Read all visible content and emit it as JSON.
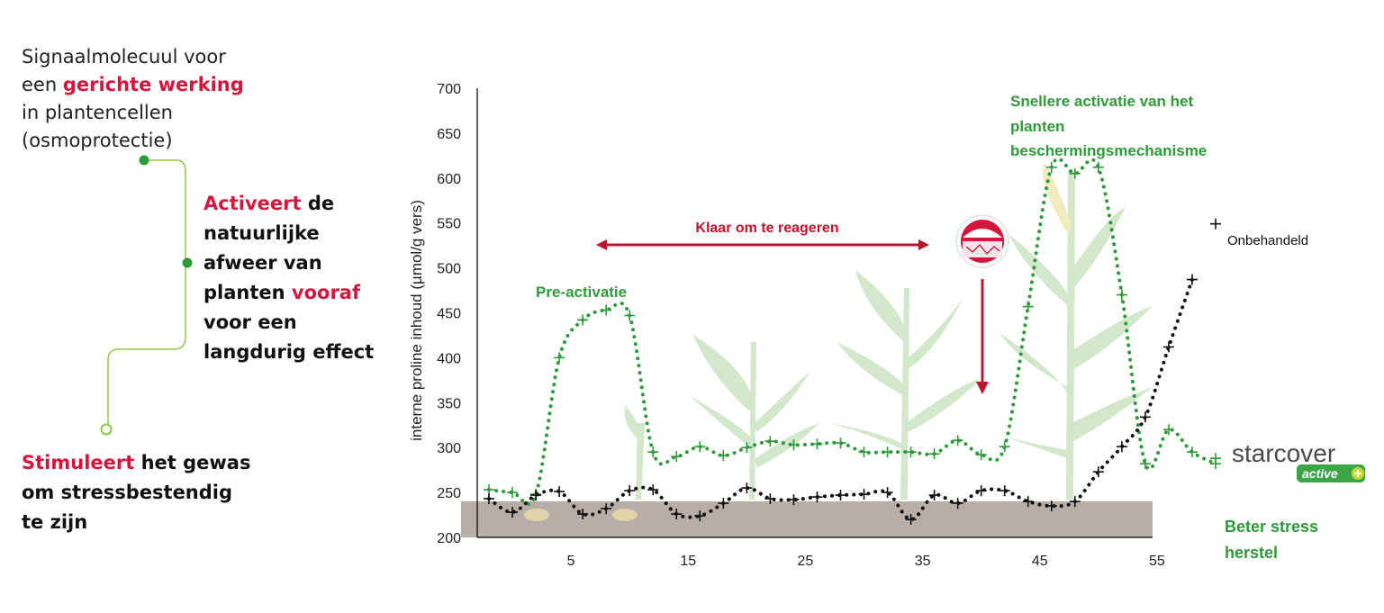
{
  "left_panel": {
    "block1": {
      "line1": "Signaalmolecuul voor",
      "line2_pre": "een ",
      "line2_red": "gerichte werking",
      "line3": "in plantencellen",
      "line4": "(osmoprotectie)"
    },
    "block2": {
      "line1_red": "Activeert",
      "line1_rest": " de",
      "line2": "natuurlijke",
      "line3": "afweer van",
      "line4_pre": "planten ",
      "line4_red": "vooraf",
      "line5": "voor een",
      "line6": "langdurig effect"
    },
    "block3": {
      "line1_red": "Stimuleert",
      "line1_rest": " het gewas",
      "line2": "om stressbestendig",
      "line3": "te zijn"
    }
  },
  "annotations": {
    "ready": "Klaar om te reageren",
    "pre_activation": "Pre-activatie",
    "faster_line1": "Snellere activatie van het",
    "faster_line2": "planten",
    "faster_line3": "beschermingsmechanisme",
    "untreated": "Onbehandeld",
    "better_line1": "Beter stress",
    "better_line2": "herstel"
  },
  "logo": {
    "name": "starcover",
    "sub": "active"
  },
  "colors": {
    "green": "#2e9b3a",
    "red": "#d4163c",
    "dark_red": "#b5172f",
    "black": "#111111",
    "soil": "#b7aea8"
  },
  "chart_data": {
    "type": "line",
    "ylabel": "interne proline inhoud (µmol/g vers)",
    "xlabel": "",
    "ylim": [
      200,
      700
    ],
    "yticks": [
      200,
      250,
      300,
      350,
      400,
      450,
      500,
      550,
      600,
      650,
      700
    ],
    "xlim": [
      -3,
      60
    ],
    "xticks": [
      5,
      15,
      25,
      35,
      45,
      55
    ],
    "series": [
      {
        "name": "",
        "color": "#2e9b3a",
        "x": [
          -2,
          0,
          2,
          4,
          6,
          8,
          10,
          12,
          14,
          16,
          18,
          20,
          22,
          24,
          26,
          28,
          30,
          32,
          34,
          36,
          38,
          40,
          42,
          44,
          46,
          48,
          50,
          52,
          54,
          56,
          58,
          60
        ],
        "y": [
          253,
          250,
          248,
          400,
          442,
          453,
          447,
          295,
          290,
          301,
          291,
          300,
          307,
          303,
          304,
          305,
          295,
          295,
          295,
          293,
          308,
          292,
          301,
          457,
          612,
          605,
          612,
          470,
          282,
          320,
          295,
          282
        ]
      },
      {
        "name": "Onbehandeld",
        "color": "#111111",
        "x": [
          -2,
          0,
          2,
          4,
          6,
          8,
          10,
          12,
          14,
          16,
          18,
          20,
          22,
          24,
          26,
          28,
          30,
          32,
          34,
          36,
          38,
          40,
          42,
          44,
          46,
          48,
          50,
          52,
          54,
          56,
          58
        ],
        "y": [
          243,
          228,
          247,
          251,
          226,
          232,
          252,
          253,
          226,
          224,
          238,
          255,
          243,
          242,
          245,
          247,
          248,
          250,
          220,
          247,
          238,
          252,
          252,
          240,
          235,
          240,
          273,
          301,
          334,
          412,
          487
        ]
      }
    ],
    "extra_points": [
      {
        "series": 0,
        "x": 60,
        "y": 288
      },
      {
        "series": 1,
        "x": 60,
        "y": 549
      }
    ]
  }
}
